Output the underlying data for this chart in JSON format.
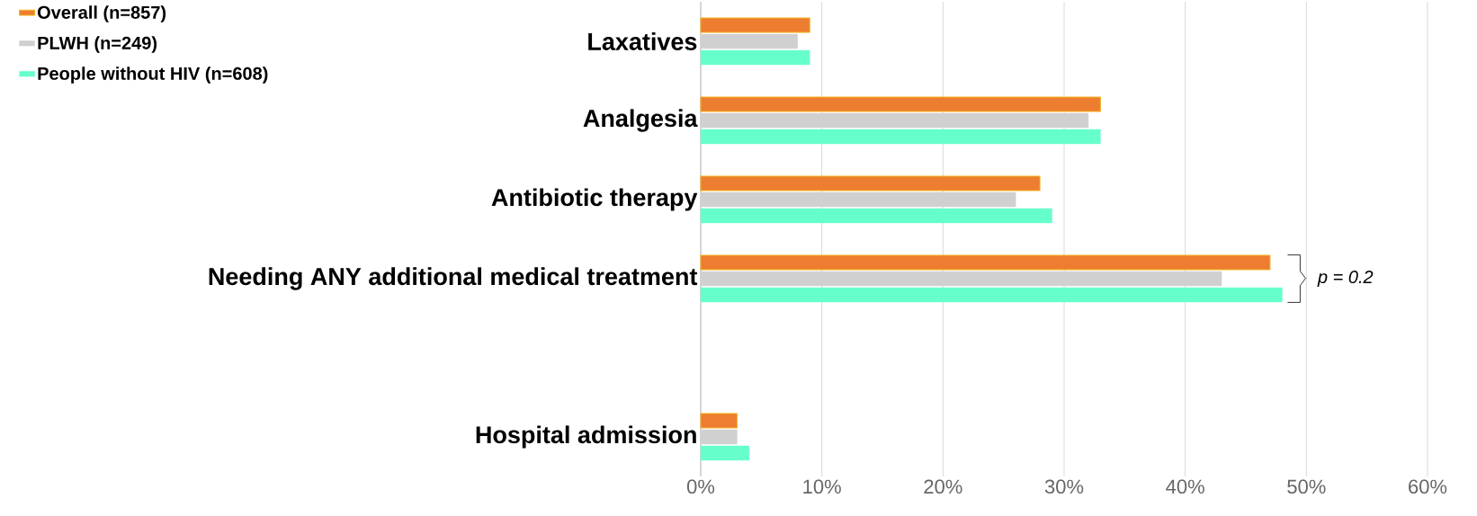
{
  "chart_data": {
    "type": "bar",
    "orientation": "horizontal",
    "categories": [
      "Laxatives",
      "Analgesia",
      "Antibiotic therapy",
      "Needing ANY additional medical treatment",
      null,
      "Hospital admission"
    ],
    "series": [
      {
        "name": "Overall (n=857)",
        "color": "#ed7d31",
        "values": [
          9,
          33,
          28,
          47,
          null,
          3
        ]
      },
      {
        "name": "PLWH (n=249)",
        "color": "#d0d0d0",
        "values": [
          8,
          32,
          26,
          43,
          null,
          3
        ]
      },
      {
        "name": "People without HIV (n=608)",
        "color": "#66ffcc",
        "values": [
          9,
          33,
          29,
          48,
          null,
          4
        ]
      }
    ],
    "xlim": [
      0,
      60
    ],
    "xticks": [
      {
        "value": 0,
        "label": "0%"
      },
      {
        "value": 10,
        "label": "10%"
      },
      {
        "value": 20,
        "label": "20%"
      },
      {
        "value": 30,
        "label": "30%"
      },
      {
        "value": 40,
        "label": "40%"
      },
      {
        "value": 50,
        "label": "50%"
      },
      {
        "value": 60,
        "label": "60%"
      }
    ],
    "grid": "x",
    "legend": "top left",
    "annotations": [
      "p = 0.2"
    ]
  }
}
